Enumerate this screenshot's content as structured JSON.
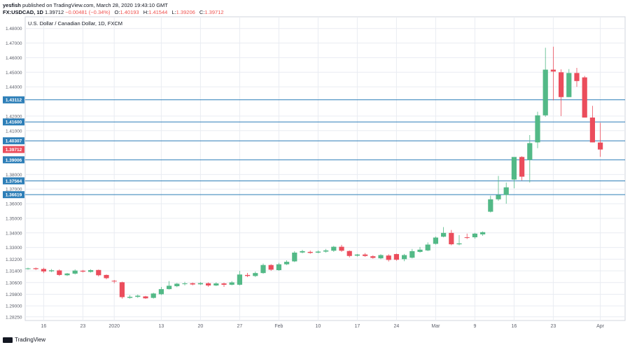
{
  "header": {
    "author": "yesfish",
    "published": "published on TradingView.com, March 28, 2020 19:43:10 GMT",
    "symbol": "FX:USDCAD, 1D",
    "last": "1.39712",
    "change": "−0.00481 (−0.34%)",
    "o_label": "O:",
    "o_value": "1.40193",
    "h_label": "H:",
    "h_value": "1.41544",
    "l_label": "L:",
    "l_value": "1.39206",
    "c_label": "C:",
    "c_value": "1.39712"
  },
  "footer": {
    "brand": "TradingView"
  },
  "colors": {
    "up": "#53b987",
    "down": "#eb4d5c",
    "hline": "#2e7fb8",
    "grid": "#e9ecf2",
    "axis": "#5d606b"
  },
  "chart_data": {
    "type": "candlestick",
    "title": "U.S. Dollar / Canadian Dollar, 1D, FXCM",
    "ylim": [
      1.28,
      1.488
    ],
    "y_ticks": [
      "1.48000",
      "1.47000",
      "1.46000",
      "1.45000",
      "1.44000",
      "1.42000",
      "1.41000",
      "1.38000",
      "1.37000",
      "1.36000",
      "1.35000",
      "1.34000",
      "1.33000",
      "1.32200",
      "1.31400",
      "1.30600",
      "1.29800",
      "1.29000",
      "1.28250"
    ],
    "x_ticks": [
      {
        "label": "16",
        "i": 2
      },
      {
        "label": "23",
        "i": 7
      },
      {
        "label": "2020",
        "i": 11
      },
      {
        "label": "13",
        "i": 17
      },
      {
        "label": "20",
        "i": 22
      },
      {
        "label": "27",
        "i": 27
      },
      {
        "label": "Feb",
        "i": 32
      },
      {
        "label": "10",
        "i": 37
      },
      {
        "label": "17",
        "i": 42
      },
      {
        "label": "24",
        "i": 47
      },
      {
        "label": "Mar",
        "i": 52
      },
      {
        "label": "9",
        "i": 57
      },
      {
        "label": "16",
        "i": 62
      },
      {
        "label": "23",
        "i": 67
      },
      {
        "label": "Apr",
        "i": 73
      }
    ],
    "levels": [
      {
        "value": 1.43112,
        "label": "1.43112"
      },
      {
        "value": 1.416,
        "label": "1.41600"
      },
      {
        "value": 1.40307,
        "label": "1.40307"
      },
      {
        "value": 1.39006,
        "label": "1.39006"
      },
      {
        "value": 1.37564,
        "label": "1.37564"
      },
      {
        "value": 1.36619,
        "label": "1.36619"
      }
    ],
    "last_price": {
      "value": 1.39712,
      "label": "1.39712"
    },
    "candles": [
      {
        "o": 1.3155,
        "h": 1.3162,
        "l": 1.3148,
        "c": 1.3157
      },
      {
        "o": 1.3158,
        "h": 1.3163,
        "l": 1.3146,
        "c": 1.3152
      },
      {
        "o": 1.3153,
        "h": 1.3161,
        "l": 1.3125,
        "c": 1.3136
      },
      {
        "o": 1.3137,
        "h": 1.3152,
        "l": 1.3131,
        "c": 1.3144
      },
      {
        "o": 1.3143,
        "h": 1.315,
        "l": 1.3105,
        "c": 1.3112
      },
      {
        "o": 1.311,
        "h": 1.3126,
        "l": 1.3105,
        "c": 1.3122
      },
      {
        "o": 1.3121,
        "h": 1.315,
        "l": 1.3115,
        "c": 1.3142
      },
      {
        "o": 1.3141,
        "h": 1.3146,
        "l": 1.3129,
        "c": 1.3135
      },
      {
        "o": 1.3133,
        "h": 1.3151,
        "l": 1.3128,
        "c": 1.3145
      },
      {
        "o": 1.3146,
        "h": 1.3149,
        "l": 1.3102,
        "c": 1.311
      },
      {
        "o": 1.3112,
        "h": 1.3115,
        "l": 1.3082,
        "c": 1.309
      },
      {
        "o": 1.3072,
        "h": 1.3078,
        "l": 1.3055,
        "c": 1.3068
      },
      {
        "o": 1.3062,
        "h": 1.3066,
        "l": 1.295,
        "c": 1.296
      },
      {
        "o": 1.2955,
        "h": 1.2974,
        "l": 1.295,
        "c": 1.2962
      },
      {
        "o": 1.2962,
        "h": 1.2978,
        "l": 1.2955,
        "c": 1.297
      },
      {
        "o": 1.2965,
        "h": 1.2969,
        "l": 1.2948,
        "c": 1.2952
      },
      {
        "o": 1.2955,
        "h": 1.299,
        "l": 1.295,
        "c": 1.2985
      },
      {
        "o": 1.298,
        "h": 1.303,
        "l": 1.2975,
        "c": 1.3015
      },
      {
        "o": 1.3015,
        "h": 1.307,
        "l": 1.3012,
        "c": 1.3038
      },
      {
        "o": 1.3035,
        "h": 1.3057,
        "l": 1.3028,
        "c": 1.3052
      },
      {
        "o": 1.305,
        "h": 1.3065,
        "l": 1.304,
        "c": 1.3054
      },
      {
        "o": 1.3055,
        "h": 1.306,
        "l": 1.3041,
        "c": 1.3047
      },
      {
        "o": 1.3048,
        "h": 1.3063,
        "l": 1.3043,
        "c": 1.3056
      },
      {
        "o": 1.3055,
        "h": 1.3061,
        "l": 1.3031,
        "c": 1.304
      },
      {
        "o": 1.304,
        "h": 1.3062,
        "l": 1.3036,
        "c": 1.3054
      },
      {
        "o": 1.3054,
        "h": 1.306,
        "l": 1.303,
        "c": 1.3045
      },
      {
        "o": 1.3045,
        "h": 1.307,
        "l": 1.3041,
        "c": 1.3061
      },
      {
        "o": 1.3045,
        "h": 1.314,
        "l": 1.304,
        "c": 1.3115
      },
      {
        "o": 1.3112,
        "h": 1.3126,
        "l": 1.3097,
        "c": 1.3105
      },
      {
        "o": 1.3105,
        "h": 1.3135,
        "l": 1.3098,
        "c": 1.3125
      },
      {
        "o": 1.3125,
        "h": 1.319,
        "l": 1.312,
        "c": 1.318
      },
      {
        "o": 1.318,
        "h": 1.3186,
        "l": 1.314,
        "c": 1.3148
      },
      {
        "o": 1.3145,
        "h": 1.3195,
        "l": 1.314,
        "c": 1.3185
      },
      {
        "o": 1.3185,
        "h": 1.3212,
        "l": 1.318,
        "c": 1.3202
      },
      {
        "o": 1.3205,
        "h": 1.3275,
        "l": 1.32,
        "c": 1.3265
      },
      {
        "o": 1.3266,
        "h": 1.3284,
        "l": 1.326,
        "c": 1.3275
      },
      {
        "o": 1.327,
        "h": 1.3279,
        "l": 1.3257,
        "c": 1.3263
      },
      {
        "o": 1.3265,
        "h": 1.328,
        "l": 1.326,
        "c": 1.3272
      },
      {
        "o": 1.3272,
        "h": 1.329,
        "l": 1.3265,
        "c": 1.328
      },
      {
        "o": 1.3278,
        "h": 1.3311,
        "l": 1.327,
        "c": 1.3305
      },
      {
        "o": 1.3305,
        "h": 1.3318,
        "l": 1.327,
        "c": 1.3278
      },
      {
        "o": 1.3276,
        "h": 1.328,
        "l": 1.3232,
        "c": 1.3242
      },
      {
        "o": 1.3244,
        "h": 1.3256,
        "l": 1.3238,
        "c": 1.3252
      },
      {
        "o": 1.3252,
        "h": 1.3262,
        "l": 1.3236,
        "c": 1.3242
      },
      {
        "o": 1.324,
        "h": 1.3247,
        "l": 1.3223,
        "c": 1.3229
      },
      {
        "o": 1.3226,
        "h": 1.3254,
        "l": 1.322,
        "c": 1.3248
      },
      {
        "o": 1.3245,
        "h": 1.3254,
        "l": 1.3204,
        "c": 1.3215
      },
      {
        "o": 1.3255,
        "h": 1.3258,
        "l": 1.321,
        "c": 1.3216
      },
      {
        "o": 1.322,
        "h": 1.3256,
        "l": 1.3206,
        "c": 1.3248
      },
      {
        "o": 1.323,
        "h": 1.329,
        "l": 1.3225,
        "c": 1.3275
      },
      {
        "o": 1.327,
        "h": 1.3304,
        "l": 1.3265,
        "c": 1.3285
      },
      {
        "o": 1.328,
        "h": 1.3335,
        "l": 1.3275,
        "c": 1.332
      },
      {
        "o": 1.3325,
        "h": 1.3375,
        "l": 1.332,
        "c": 1.3368
      },
      {
        "o": 1.3374,
        "h": 1.344,
        "l": 1.337,
        "c": 1.34
      },
      {
        "o": 1.34,
        "h": 1.342,
        "l": 1.3315,
        "c": 1.3322
      },
      {
        "o": 1.3322,
        "h": 1.3385,
        "l": 1.3315,
        "c": 1.3328
      },
      {
        "o": 1.337,
        "h": 1.3395,
        "l": 1.3358,
        "c": 1.3368
      },
      {
        "o": 1.337,
        "h": 1.34,
        "l": 1.336,
        "c": 1.3395
      },
      {
        "o": 1.339,
        "h": 1.341,
        "l": 1.338,
        "c": 1.3405
      },
      {
        "o": 1.3545,
        "h": 1.3655,
        "l": 1.354,
        "c": 1.363
      },
      {
        "o": 1.363,
        "h": 1.379,
        "l": 1.362,
        "c": 1.366
      },
      {
        "o": 1.366,
        "h": 1.3745,
        "l": 1.36,
        "c": 1.3712
      },
      {
        "o": 1.3765,
        "h": 1.391,
        "l": 1.3705,
        "c": 1.392
      },
      {
        "o": 1.392,
        "h": 1.3925,
        "l": 1.376,
        "c": 1.3785
      },
      {
        "o": 1.39,
        "h": 1.407,
        "l": 1.3745,
        "c": 1.4015
      },
      {
        "o": 1.402,
        "h": 1.423,
        "l": 1.398,
        "c": 1.4205
      },
      {
        "o": 1.4205,
        "h": 1.4668,
        "l": 1.4195,
        "c": 1.4518
      },
      {
        "o": 1.4518,
        "h": 1.4675,
        "l": 1.4308,
        "c": 1.4505
      },
      {
        "o": 1.45,
        "h": 1.452,
        "l": 1.42,
        "c": 1.433
      },
      {
        "o": 1.433,
        "h": 1.4522,
        "l": 1.433,
        "c": 1.4495
      },
      {
        "o": 1.4495,
        "h": 1.453,
        "l": 1.44,
        "c": 1.444
      },
      {
        "o": 1.4465,
        "h": 1.4475,
        "l": 1.419,
        "c": 1.419
      },
      {
        "o": 1.419,
        "h": 1.427,
        "l": 1.402,
        "c": 1.402
      },
      {
        "o": 1.4019,
        "h": 1.4154,
        "l": 1.3921,
        "c": 1.3971
      }
    ]
  }
}
